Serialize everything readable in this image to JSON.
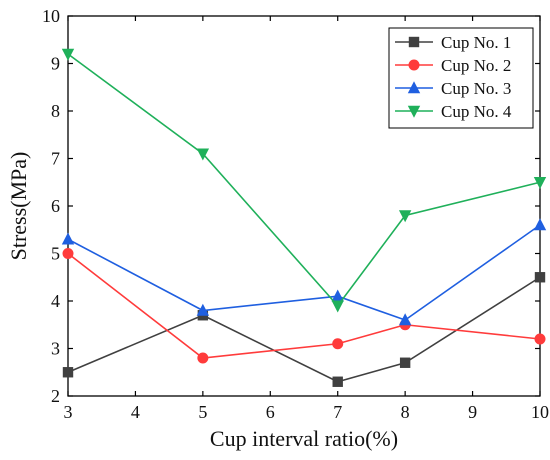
{
  "chart_data": {
    "type": "line",
    "xlabel": "Cup interval ratio(%)",
    "ylabel": "Stress(MPa)",
    "x": [
      3,
      5,
      7,
      8,
      10
    ],
    "xlim": [
      3,
      10
    ],
    "ylim": [
      2,
      10
    ],
    "x_ticks": [
      3,
      4,
      5,
      6,
      7,
      8,
      9,
      10
    ],
    "y_ticks": [
      2,
      3,
      4,
      5,
      6,
      7,
      8,
      9,
      10
    ],
    "grid": false,
    "legend_position": "top-right",
    "series": [
      {
        "name": "Cup No. 1",
        "color": "#404040",
        "marker": "square",
        "values": [
          2.5,
          3.7,
          2.3,
          2.7,
          4.5
        ]
      },
      {
        "name": "Cup No. 2",
        "color": "#ff3b3b",
        "marker": "circle",
        "values": [
          5.0,
          2.8,
          3.1,
          3.5,
          3.2
        ]
      },
      {
        "name": "Cup No. 3",
        "color": "#1f5fe0",
        "marker": "triangle-up",
        "values": [
          5.3,
          3.8,
          4.1,
          3.6,
          5.6
        ]
      },
      {
        "name": "Cup No. 4",
        "color": "#1fb05a",
        "marker": "triangle-down",
        "values": [
          9.2,
          7.1,
          3.9,
          5.8,
          6.5
        ]
      }
    ]
  }
}
